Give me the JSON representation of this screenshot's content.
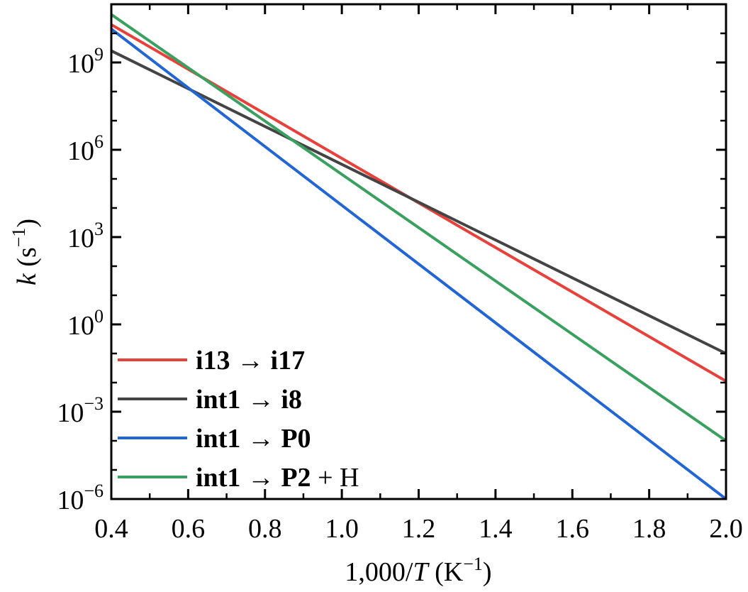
{
  "chart_data": {
    "type": "line",
    "xlabel": {
      "prefix": "1,000/",
      "var": "T",
      "suffix": " (K",
      "sup": "−1",
      "close": ")"
    },
    "ylabel": {
      "var": "k",
      "suffix": " (s",
      "sup": "−1",
      "close": ")"
    },
    "xlim": [
      0.4,
      2.0
    ],
    "ylim_log10": [
      -6,
      11
    ],
    "y_scale": "log",
    "x_ticks": [
      0.4,
      0.6,
      0.8,
      1.0,
      1.2,
      1.4,
      1.6,
      1.8,
      2.0
    ],
    "x_tick_labels": [
      "0.4",
      "0.6",
      "0.8",
      "1.0",
      "1.2",
      "1.4",
      "1.6",
      "1.8",
      "2.0"
    ],
    "y_tick_exponents": [
      -6,
      -3,
      0,
      3,
      6,
      9
    ],
    "y_tick_labels": [
      {
        "base": "10",
        "exp": "−6"
      },
      {
        "base": "10",
        "exp": "−3"
      },
      {
        "base": "10",
        "exp": "0"
      },
      {
        "base": "10",
        "exp": "3"
      },
      {
        "base": "10",
        "exp": "6"
      },
      {
        "base": "10",
        "exp": "9"
      }
    ],
    "legend_position": "bottom-left",
    "series": [
      {
        "name": "i13 → i17",
        "bold": "i13 → i17",
        "rest": "",
        "color": "#e8413b",
        "x": [
          0.4,
          2.0
        ],
        "log10_y": [
          10.3,
          -1.95
        ]
      },
      {
        "name": "int1 → i8",
        "bold": "int1 → i8",
        "rest": "",
        "color": "#444444",
        "x": [
          0.4,
          2.0
        ],
        "log10_y": [
          9.4,
          -1.0
        ]
      },
      {
        "name": "int1 → P0",
        "bold": "int1 → P0",
        "rest": "",
        "color": "#2266d6",
        "x": [
          0.4,
          2.0
        ],
        "log10_y": [
          10.15,
          -6.0
        ]
      },
      {
        "name": "int1 → P2 + H",
        "bold": "int1 → P2",
        "rest": " + H",
        "color": "#3aa060",
        "x": [
          0.4,
          2.0
        ],
        "log10_y": [
          10.65,
          -4.0
        ]
      }
    ]
  }
}
